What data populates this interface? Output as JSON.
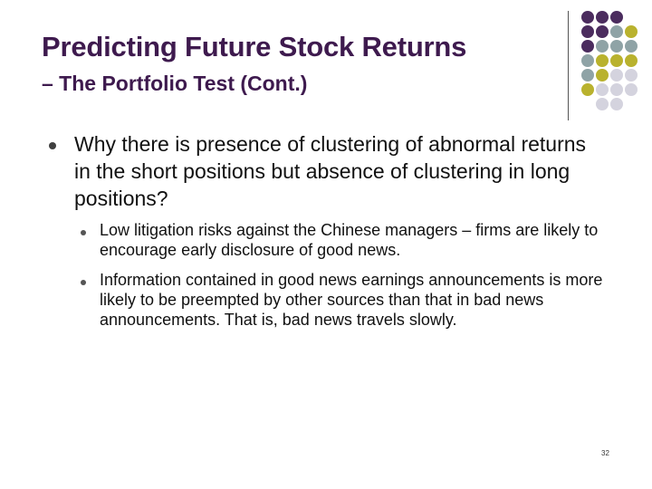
{
  "title": "Predicting Future Stock Returns",
  "subtitle": "– The Portfolio Test (Cont.)",
  "bullets": [
    {
      "text": "Why there is presence of clustering of abnormal returns in the short positions but absence of clustering in long positions?",
      "sub_bullets": [
        "Low litigation risks against the Chinese managers – firms are likely to encourage early disclosure of good news.",
        "Information contained in good news earnings announcements is more likely to be preempted by other sources than that in bad news announcements. That is, bad news travels slowly."
      ]
    }
  ],
  "page_number": "32",
  "colors": {
    "title": "#3e1a4e",
    "dot_purple": "#4b2c5e",
    "dot_gray": "#8fa3a6",
    "dot_yellow": "#b9b22e",
    "dot_light": "#d4d3de"
  }
}
